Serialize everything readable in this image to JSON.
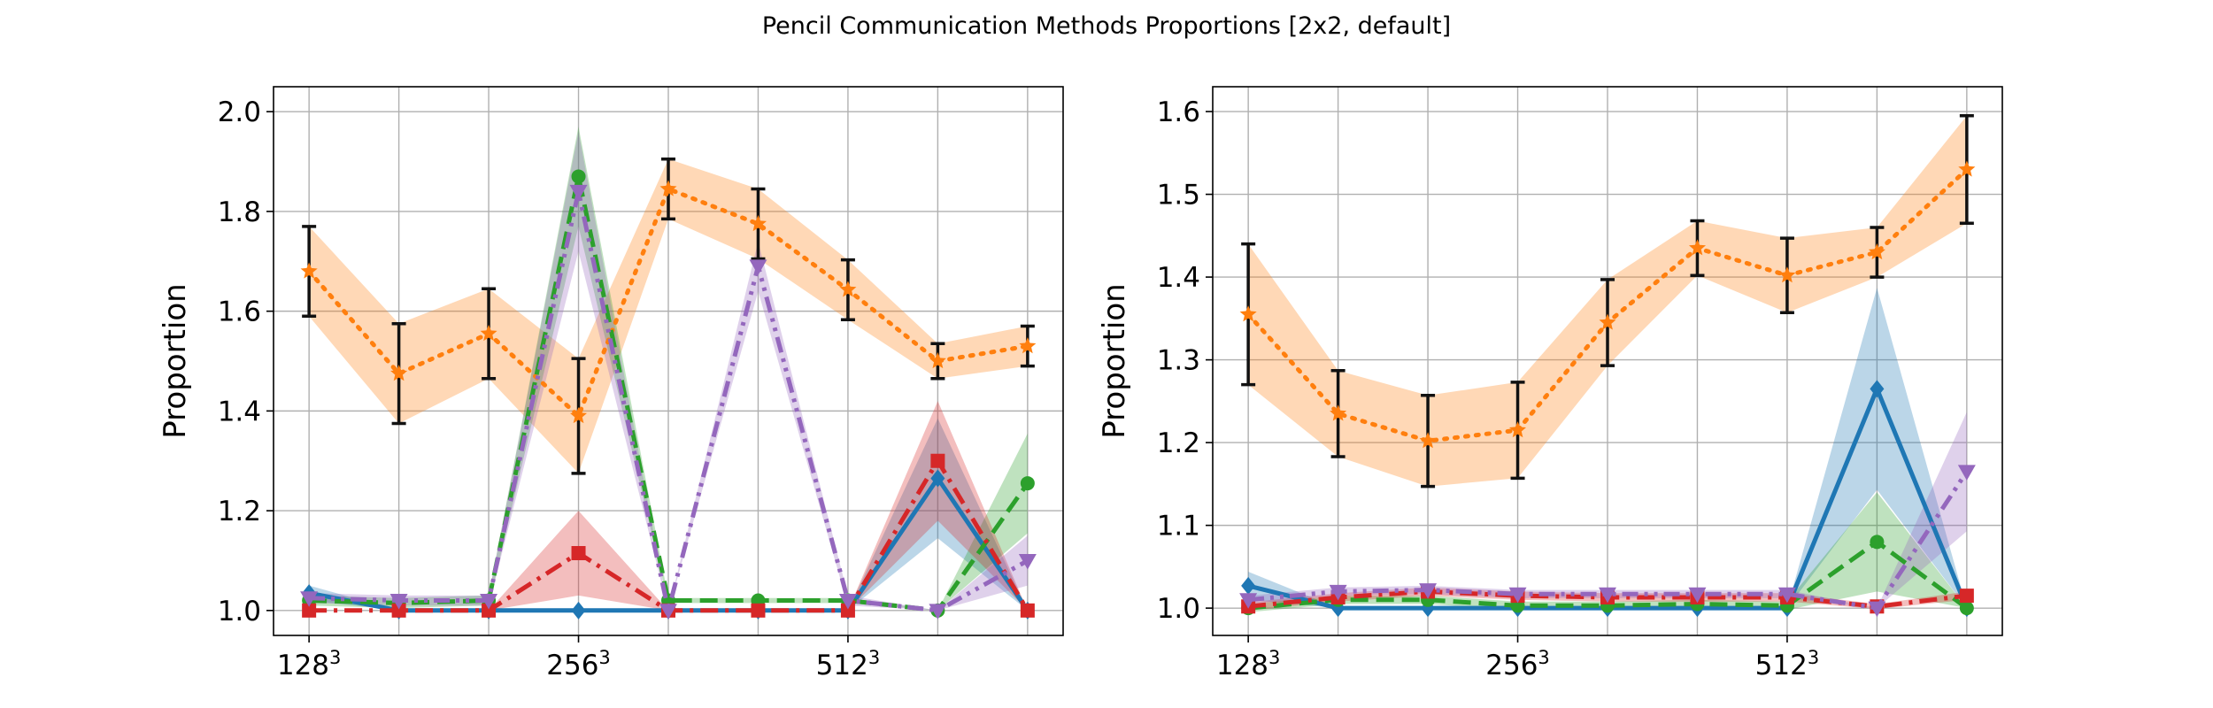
{
  "figure": {
    "title": "Pencil Communication Methods Proportions [2x2, default]"
  },
  "chart_data": [
    {
      "type": "line",
      "ylabel": "Proportion",
      "xlabel": "",
      "ylim": [
        0.95,
        2.05
      ],
      "yticks": [
        1.0,
        1.2,
        1.4,
        1.6,
        1.8,
        2.0
      ],
      "ytick_labels": [
        "1.0",
        "1.2",
        "1.4",
        "1.6",
        "1.8",
        "2.0"
      ],
      "x": [
        0,
        1,
        2,
        3,
        4,
        5,
        6,
        7,
        8
      ],
      "xticks": [
        0,
        3,
        6
      ],
      "xtick_labels": [
        {
          "base": "128",
          "exp": "3"
        },
        {
          "base": "256",
          "exp": "3"
        },
        {
          "base": "512",
          "exp": "3"
        }
      ],
      "grid": true,
      "series": [
        {
          "color": "#ff7f0e",
          "linestyle": "dotted",
          "marker": "star",
          "values": [
            1.68,
            1.475,
            1.555,
            1.39,
            1.845,
            1.775,
            1.643,
            1.5,
            1.53
          ],
          "err": [
            0.09,
            0.1,
            0.09,
            0.115,
            0.06,
            0.07,
            0.06,
            0.035,
            0.04
          ]
        },
        {
          "color": "#1f77b4",
          "linestyle": "solid",
          "marker": "diamond",
          "values": [
            1.035,
            1.0,
            1.0,
            1.0,
            1.0,
            1.0,
            1.0,
            1.265,
            1.0
          ],
          "err": [
            0.015,
            0.0,
            0.0,
            0.0,
            0.0,
            0.0,
            0.0,
            0.12,
            0.0
          ]
        },
        {
          "color": "#2ca02c",
          "linestyle": "dashed",
          "marker": "circle",
          "values": [
            1.02,
            1.015,
            1.02,
            1.87,
            1.02,
            1.02,
            1.02,
            1.0,
            1.255
          ],
          "err": [
            0.01,
            0.01,
            0.01,
            0.1,
            0.005,
            0.005,
            0.005,
            0.0,
            0.1
          ]
        },
        {
          "color": "#d62728",
          "linestyle": "dashdot",
          "marker": "square",
          "values": [
            1.0,
            1.0,
            1.0,
            1.115,
            1.0,
            1.0,
            1.0,
            1.3,
            1.0
          ],
          "err": [
            0.0,
            0.0,
            0.0,
            0.085,
            0.0,
            0.0,
            0.0,
            0.12,
            0.0
          ]
        },
        {
          "color": "#9467bd",
          "linestyle": "dashdotdot",
          "marker": "triangle-down",
          "values": [
            1.025,
            1.02,
            1.02,
            1.84,
            1.0,
            1.69,
            1.02,
            1.0,
            1.1
          ],
          "err": [
            0.01,
            0.01,
            0.01,
            0.12,
            0.0,
            0.05,
            0.01,
            0.0,
            0.05
          ]
        }
      ]
    },
    {
      "type": "line",
      "ylabel": "Proportion",
      "xlabel": "",
      "ylim": [
        0.967,
        1.63
      ],
      "yticks": [
        1.0,
        1.1,
        1.2,
        1.3,
        1.4,
        1.5,
        1.6
      ],
      "ytick_labels": [
        "1.0",
        "1.1",
        "1.2",
        "1.3",
        "1.4",
        "1.5",
        "1.6"
      ],
      "x": [
        0,
        1,
        2,
        3,
        4,
        5,
        6,
        7,
        8
      ],
      "xticks": [
        0,
        3,
        6
      ],
      "xtick_labels": [
        {
          "base": "128",
          "exp": "3"
        },
        {
          "base": "256",
          "exp": "3"
        },
        {
          "base": "512",
          "exp": "3"
        }
      ],
      "grid": true,
      "series": [
        {
          "color": "#ff7f0e",
          "linestyle": "dotted",
          "marker": "star",
          "values": [
            1.355,
            1.235,
            1.202,
            1.215,
            1.345,
            1.435,
            1.402,
            1.43,
            1.53
          ],
          "err": [
            0.085,
            0.052,
            0.055,
            0.058,
            0.052,
            0.033,
            0.045,
            0.03,
            0.065
          ]
        },
        {
          "color": "#1f77b4",
          "linestyle": "solid",
          "marker": "diamond",
          "values": [
            1.027,
            1.0,
            1.0,
            1.0,
            1.0,
            1.0,
            1.0,
            1.265,
            1.0
          ],
          "err": [
            0.017,
            0.0,
            0.0,
            0.0,
            0.0,
            0.0,
            0.0,
            0.122,
            0.0
          ]
        },
        {
          "color": "#2ca02c",
          "linestyle": "dashed",
          "marker": "circle",
          "values": [
            1.0,
            1.01,
            1.01,
            1.003,
            1.003,
            1.005,
            1.003,
            1.08,
            1.0
          ],
          "err": [
            0.005,
            0.005,
            0.005,
            0.005,
            0.005,
            0.005,
            0.005,
            0.06,
            0.0
          ]
        },
        {
          "color": "#d62728",
          "linestyle": "dashdot",
          "marker": "square",
          "values": [
            1.002,
            1.013,
            1.02,
            1.015,
            1.013,
            1.013,
            1.013,
            1.002,
            1.015
          ],
          "err": [
            0.005,
            0.005,
            0.005,
            0.005,
            0.005,
            0.005,
            0.005,
            0.003,
            0.005
          ]
        },
        {
          "color": "#9467bd",
          "linestyle": "dashdotdot",
          "marker": "triangle-down",
          "values": [
            1.01,
            1.02,
            1.022,
            1.017,
            1.017,
            1.017,
            1.017,
            1.0,
            1.165
          ],
          "err": [
            0.005,
            0.005,
            0.005,
            0.005,
            0.005,
            0.005,
            0.005,
            0.0,
            0.072
          ]
        }
      ]
    }
  ]
}
